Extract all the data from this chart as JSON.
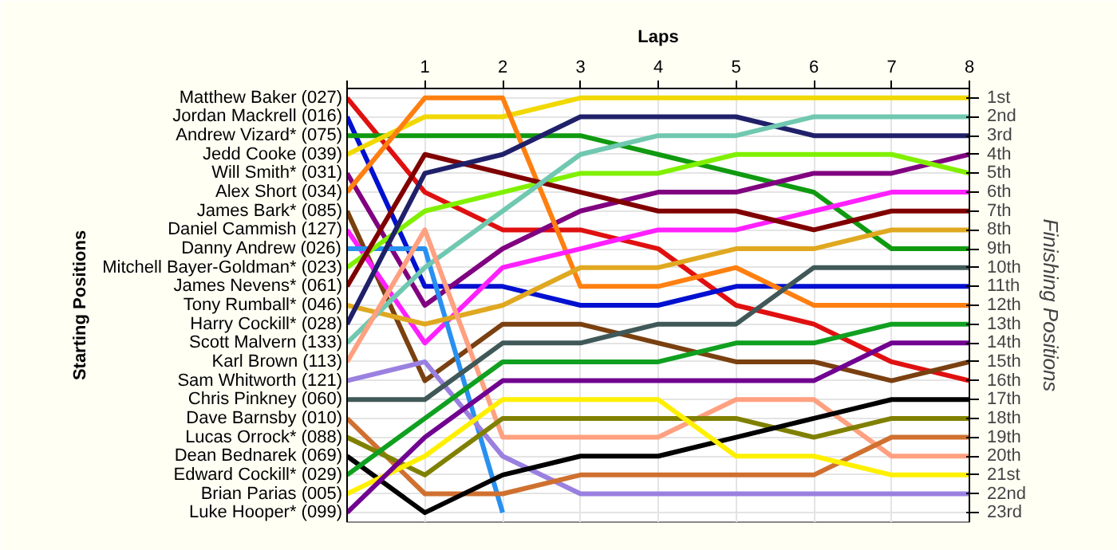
{
  "chart_data": {
    "type": "line",
    "xlabel": "Laps",
    "annotations": [
      "Starting Positions"
    ],
    "ylabel": "Finishing Positions",
    "x": [
      0,
      1,
      2,
      3,
      4,
      5,
      6,
      7,
      8
    ],
    "xlim": [
      0,
      8
    ],
    "xticks": [
      {
        "value": 0,
        "label": null
      },
      1,
      2,
      3,
      4,
      5,
      6,
      7,
      8
    ],
    "ylim": [
      23.5,
      0.5
    ],
    "yticks": [
      {
        "value": 1,
        "label": "1st"
      },
      {
        "value": 2,
        "label": "2nd"
      },
      {
        "value": 3,
        "label": "3rd"
      },
      {
        "value": 4,
        "label": "4th"
      },
      {
        "value": 5,
        "label": "5th"
      },
      {
        "value": 6,
        "label": "6th"
      },
      {
        "value": 7,
        "label": "7th"
      },
      {
        "value": 8,
        "label": "8th"
      },
      {
        "value": 9,
        "label": "9th"
      },
      {
        "value": 10,
        "label": "10th"
      },
      {
        "value": 11,
        "label": "11th"
      },
      {
        "value": 12,
        "label": "12th"
      },
      {
        "value": 13,
        "label": "13th"
      },
      {
        "value": 14,
        "label": "14th"
      },
      {
        "value": 15,
        "label": "15th"
      },
      {
        "value": 16,
        "label": "16th"
      },
      {
        "value": 17,
        "label": "17th"
      },
      {
        "value": 18,
        "label": "18th"
      },
      {
        "value": 19,
        "label": "19th"
      },
      {
        "value": 20,
        "label": "20th"
      },
      {
        "value": 21,
        "label": "21st"
      },
      {
        "value": 22,
        "label": "22nd"
      },
      {
        "value": 23,
        "label": "23rd"
      }
    ],
    "grid": true,
    "legend": "left",
    "marker": "none",
    "line_style": "solid",
    "series": [
      {
        "name": "Matthew Baker (027)",
        "color": "#e01010",
        "values": [
          1,
          6,
          8,
          8,
          9,
          12,
          13,
          15,
          16
        ]
      },
      {
        "name": "Jordan Mackrell (016)",
        "color": "#0010d0",
        "values": [
          2,
          11,
          11,
          12,
          12,
          11,
          11,
          11,
          11
        ]
      },
      {
        "name": "Andrew Vizard* (075)",
        "color": "#109a10",
        "values": [
          3,
          3,
          3,
          3,
          4,
          5,
          6,
          9,
          9
        ]
      },
      {
        "name": "Jedd Cooke (039)",
        "color": "#f0d800",
        "values": [
          4,
          2,
          2,
          1,
          1,
          1,
          1,
          1,
          1
        ]
      },
      {
        "name": "Will Smith* (031)",
        "color": "#800080",
        "values": [
          5,
          12,
          9,
          7,
          6,
          6,
          5,
          5,
          4
        ]
      },
      {
        "name": "Alex Short (034)",
        "color": "#ff7f10",
        "values": [
          6,
          1,
          1,
          11,
          11,
          10,
          12,
          12,
          12
        ]
      },
      {
        "name": "James Bark* (085)",
        "color": "#7a4010",
        "values": [
          7,
          16,
          13,
          13,
          14,
          15,
          15,
          16,
          15
        ]
      },
      {
        "name": "Daniel Cammish (127)",
        "color": "#ff20ff",
        "values": [
          8,
          14,
          10,
          9,
          8,
          8,
          7,
          6,
          6
        ]
      },
      {
        "name": "Danny Andrew (026)",
        "color": "#2890f0",
        "values": [
          9,
          9,
          23,
          null,
          null,
          null,
          null,
          null,
          null
        ]
      },
      {
        "name": "Mitchell Bayer-Goldman* (023)",
        "color": "#80f000",
        "values": [
          10,
          7,
          6,
          5,
          5,
          4,
          4,
          4,
          5
        ]
      },
      {
        "name": "James Nevens* (061)",
        "color": "#800000",
        "values": [
          11,
          4,
          5,
          6,
          7,
          7,
          8,
          7,
          7
        ]
      },
      {
        "name": "Tony Rumball* (046)",
        "color": "#e0a820",
        "values": [
          12,
          13,
          12,
          10,
          10,
          9,
          9,
          8,
          8
        ]
      },
      {
        "name": "Harry Cockill* (028)",
        "color": "#20206a",
        "values": [
          13,
          5,
          4,
          2,
          2,
          2,
          3,
          3,
          3
        ]
      },
      {
        "name": "Scott Malvern (133)",
        "color": "#70c8b0",
        "values": [
          14,
          10,
          7,
          4,
          3,
          3,
          2,
          2,
          2
        ]
      },
      {
        "name": "Karl Brown (113)",
        "color": "#ffa080",
        "values": [
          15,
          8,
          19,
          19,
          19,
          17,
          17,
          20,
          20
        ]
      },
      {
        "name": "Sam Whitworth (121)",
        "color": "#9a80e0",
        "values": [
          16,
          15,
          20,
          22,
          22,
          22,
          22,
          22,
          22
        ]
      },
      {
        "name": "Chris Pinkney (060)",
        "color": "#405858",
        "values": [
          17,
          17,
          14,
          14,
          13,
          13,
          10,
          10,
          10
        ]
      },
      {
        "name": "Dave Barnsby (010)",
        "color": "#d07030",
        "values": [
          18,
          22,
          22,
          21,
          21,
          21,
          21,
          19,
          19
        ]
      },
      {
        "name": "Lucas Orrock* (088)",
        "color": "#808000",
        "values": [
          19,
          21,
          18,
          18,
          18,
          18,
          19,
          18,
          18
        ]
      },
      {
        "name": "Dean Bednarek (069)",
        "color": "#000000",
        "values": [
          20,
          23,
          21,
          20,
          20,
          19,
          18,
          17,
          17
        ]
      },
      {
        "name": "Edward Cockill* (029)",
        "color": "#10a020",
        "values": [
          21,
          18,
          15,
          15,
          15,
          14,
          14,
          13,
          13
        ]
      },
      {
        "name": "Brian Parias (005)",
        "color": "#fff000",
        "values": [
          22,
          20,
          17,
          17,
          17,
          20,
          20,
          21,
          21
        ]
      },
      {
        "name": "Luke Hooper* (099)",
        "color": "#700090",
        "values": [
          23,
          19,
          16,
          16,
          16,
          16,
          16,
          14,
          14
        ]
      }
    ]
  }
}
